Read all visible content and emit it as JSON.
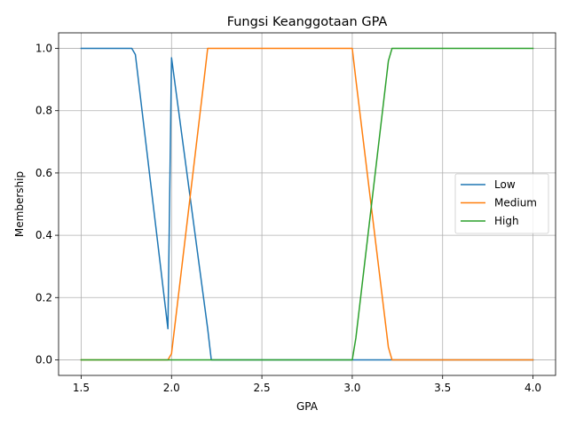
{
  "chart_data": {
    "type": "line",
    "title": "Fungsi Keanggotaan GPA",
    "xlabel": "GPA",
    "ylabel": "Membership",
    "xlim": [
      1.375,
      4.125
    ],
    "ylim": [
      -0.05,
      1.05
    ],
    "xticks": [
      1.5,
      2.0,
      2.5,
      3.0,
      3.5,
      4.0
    ],
    "xtick_labels": [
      "1.5",
      "2.0",
      "2.5",
      "3.0",
      "3.5",
      "4.0"
    ],
    "yticks": [
      0.0,
      0.2,
      0.4,
      0.6,
      0.8,
      1.0
    ],
    "ytick_labels": [
      "0.0",
      "0.2",
      "0.4",
      "0.6",
      "0.8",
      "1.0"
    ],
    "grid": true,
    "legend_position": "center-right",
    "series": [
      {
        "name": "Low",
        "color": "#1f77b4",
        "x": [
          1.5,
          1.78,
          1.8,
          1.98,
          2.0,
          2.2,
          2.22,
          4.0
        ],
        "y": [
          1.0,
          1.0,
          0.98,
          0.1,
          0.97,
          0.1,
          0.0,
          0.0
        ]
      },
      {
        "name": "Medium",
        "color": "#ff7f0e",
        "x": [
          1.5,
          1.98,
          2.0,
          2.18,
          2.2,
          2.22,
          2.98,
          3.0,
          3.02,
          3.2,
          3.22,
          4.0
        ],
        "y": [
          0.0,
          0.0,
          0.02,
          0.9,
          1.0,
          1.0,
          1.0,
          1.0,
          0.9,
          0.04,
          0.0,
          0.0
        ]
      },
      {
        "name": "High",
        "color": "#2ca02c",
        "x": [
          1.5,
          2.98,
          3.0,
          3.02,
          3.2,
          3.22,
          4.0
        ],
        "y": [
          0.0,
          0.0,
          0.0,
          0.07,
          0.96,
          1.0,
          1.0
        ]
      }
    ]
  }
}
